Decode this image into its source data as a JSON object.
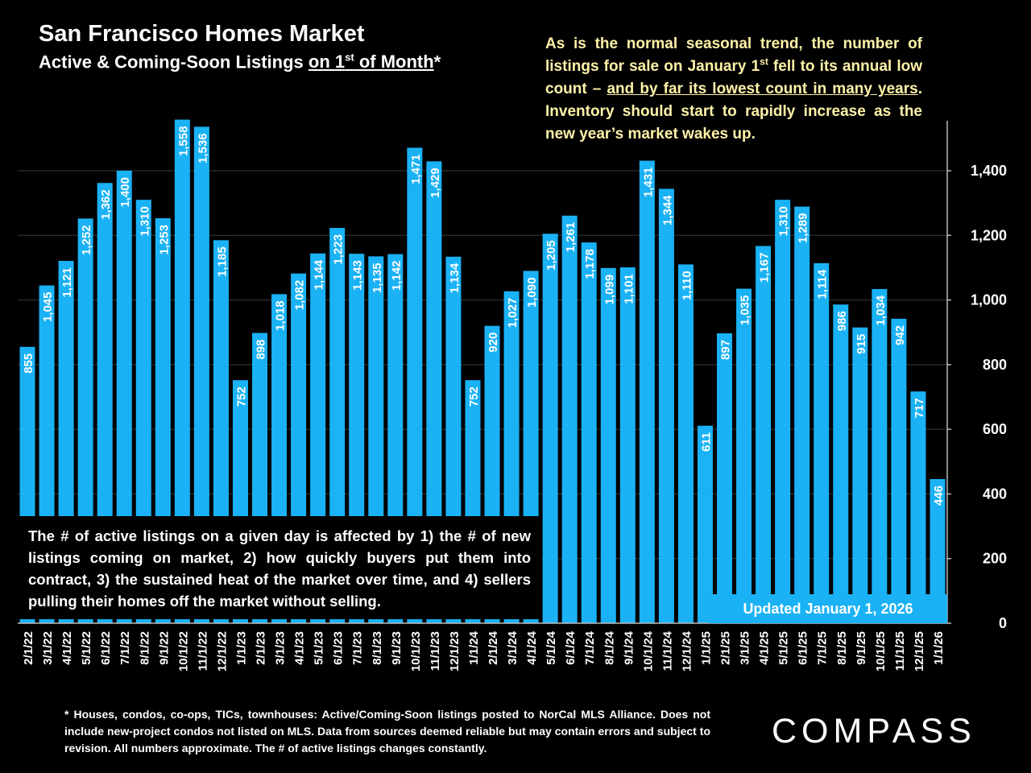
{
  "header": {
    "title": "San Francisco Homes Market",
    "subtitle_prefix": "Active & Coming-Soon Listings ",
    "subtitle_underlined": "on 1",
    "subtitle_sup": "st",
    "subtitle_underlined2": " of Month",
    "subtitle_suffix": "*"
  },
  "commentary": {
    "part1": "As is the normal seasonal trend, the number of listings for sale on January 1",
    "sup": "st",
    "part2": " fell to its annual low count – ",
    "underlined": "and by far its lowest count in many years",
    "part3": ". Inventory should start to rapidly increase as the new year’s market wakes up."
  },
  "note": "The # of active listings on a given day is affected by 1) the # of new listings coming on market, 2) how quickly buyers put them into contract, 3) the sustained heat of the market over time, and 4) sellers pulling their homes off the market without selling.",
  "updated_label": "Updated January 1, 2026",
  "footnote": "* Houses, condos, co-ops, TICs, townhouses: Active/Coming-Soon listings posted to NorCal MLS Alliance. Does not include new-project condos not listed on MLS. Data from sources deemed reliable but may contain errors and subject to revision. All numbers approximate. The # of active listings changes constantly.",
  "logo": "COMPASS",
  "colors": {
    "background": "#000000",
    "bar": "#1ab2f5",
    "commentary_text": "#fff2a8"
  },
  "chart_data": {
    "type": "bar",
    "title": "San Francisco Homes Market",
    "ylabel": "",
    "xlabel": "",
    "ylim": [
      0,
      1560
    ],
    "yticks": [
      0,
      200,
      400,
      600,
      800,
      1000,
      1200,
      1400
    ],
    "ytick_labels": [
      "0",
      "200",
      "400",
      "600",
      "800",
      "1,000",
      "1,200",
      "1,400"
    ],
    "y_axis_position": "right",
    "grid": true,
    "categories": [
      "2/1/22",
      "3/1/22",
      "4/1/22",
      "5/1/22",
      "6/1/22",
      "7/1/22",
      "8/1/22",
      "9/1/22",
      "10/1/22",
      "11/1/22",
      "12/1/22",
      "1/1/23",
      "2/1/23",
      "3/1/23",
      "4/1/23",
      "5/1/23",
      "6/1/23",
      "7/1/23",
      "8/1/23",
      "9/1/23",
      "10/1/23",
      "11/1/23",
      "12/1/23",
      "1/1/24",
      "2/1/24",
      "3/1/24",
      "4/1/24",
      "5/1/24",
      "6/1/24",
      "7/1/24",
      "8/1/24",
      "9/1/24",
      "10/1/24",
      "11/1/24",
      "12/1/24",
      "1/1/25",
      "2/1/25",
      "3/1/25",
      "4/1/25",
      "5/1/25",
      "6/1/25",
      "7/1/25",
      "8/1/25",
      "9/1/25",
      "10/1/25",
      "11/1/25",
      "12/1/25",
      "1/1/26"
    ],
    "values": [
      855,
      1045,
      1121,
      1252,
      1362,
      1400,
      1310,
      1253,
      1558,
      1536,
      1185,
      752,
      898,
      1018,
      1082,
      1144,
      1223,
      1143,
      1135,
      1142,
      1471,
      1429,
      1134,
      752,
      920,
      1027,
      1090,
      1205,
      1261,
      1178,
      1099,
      1101,
      1431,
      1344,
      1110,
      611,
      897,
      1035,
      1167,
      1310,
      1289,
      1114,
      986,
      915,
      1034,
      942,
      717,
      446
    ],
    "value_labels": [
      "855",
      "1,045",
      "1,121",
      "1,252",
      "1,362",
      "1,400",
      "1,310",
      "1,253",
      "1,558",
      "1,536",
      "1,185",
      "752",
      "898",
      "1,018",
      "1,082",
      "1,144",
      "1,223",
      "1,143",
      "1,135",
      "1,142",
      "1,471",
      "1,429",
      "1,134",
      "752",
      "920",
      "1,027",
      "1,090",
      "1,205",
      "1,261",
      "1,178",
      "1,099",
      "1,101",
      "1,431",
      "1,344",
      "1,110",
      "611",
      "897",
      "1,035",
      "1,167",
      "1,310",
      "1,289",
      "1,114",
      "986",
      "915",
      "1,034",
      "942",
      "717",
      "446"
    ]
  }
}
